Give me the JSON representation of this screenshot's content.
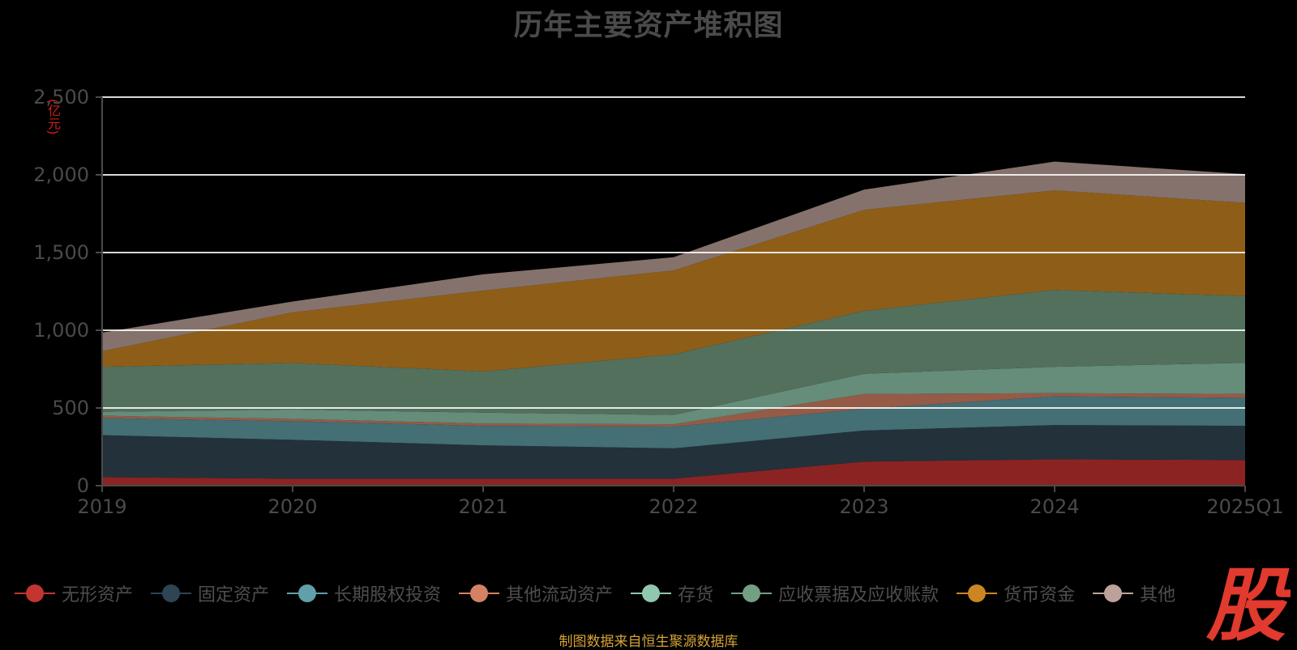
{
  "chart_data": {
    "type": "area",
    "stacked": true,
    "title": "历年主要资产堆积图",
    "y_unit": "(亿元)",
    "categories": [
      "2019",
      "2020",
      "2021",
      "2022",
      "2023",
      "2024",
      "2025Q1"
    ],
    "ylim": [
      0,
      2500
    ],
    "yticks": [
      0,
      500,
      1000,
      1500,
      2000,
      2500
    ],
    "ytick_labels": [
      "0",
      "500",
      "1,000",
      "1,500",
      "2,000",
      "2,500"
    ],
    "grid": true,
    "legend_position": "bottom",
    "series": [
      {
        "name": "无形资产",
        "color": "#c23531",
        "fill": "#8b2323",
        "values": [
          55,
          45,
          45,
          45,
          155,
          170,
          165
        ]
      },
      {
        "name": "固定资产",
        "color": "#2f4554",
        "fill": "#23313a",
        "values": [
          270,
          250,
          215,
          195,
          200,
          220,
          220
        ]
      },
      {
        "name": "长期股权投资",
        "color": "#61a0a8",
        "fill": "#436f75",
        "values": [
          110,
          120,
          125,
          140,
          140,
          185,
          180
        ]
      },
      {
        "name": "其他流动资产",
        "color": "#d48265",
        "fill": "#955b47",
        "values": [
          15,
          15,
          15,
          15,
          95,
          20,
          25
        ]
      },
      {
        "name": "存货",
        "color": "#91c7ae",
        "fill": "#668c7a",
        "values": [
          25,
          60,
          70,
          60,
          130,
          170,
          200
        ]
      },
      {
        "name": "应收票据及应收账款",
        "color": "#749f83",
        "fill": "#52705c",
        "values": [
          290,
          300,
          265,
          390,
          405,
          495,
          430
        ]
      },
      {
        "name": "货币资金",
        "color": "#ca8622",
        "fill": "#8e5e18",
        "values": [
          100,
          325,
          520,
          540,
          650,
          640,
          600
        ]
      },
      {
        "name": "其他",
        "color": "#bda29a",
        "fill": "#85726c",
        "values": [
          120,
          70,
          105,
          85,
          130,
          185,
          185
        ]
      }
    ]
  },
  "legend": {
    "items": [
      {
        "label": "无形资产"
      },
      {
        "label": "固定资产"
      },
      {
        "label": "长期股权投资"
      },
      {
        "label": "其他流动资产"
      },
      {
        "label": "存货"
      },
      {
        "label": "应收票据及应收账款"
      },
      {
        "label": "货币资金"
      },
      {
        "label": "其他"
      }
    ]
  },
  "footer": {
    "text": "制图数据来自恒生聚源数据库"
  },
  "brand": {
    "text": "股",
    "color": "#e23a2e"
  },
  "colors": {
    "background": "#000000",
    "grid": "#ffffff",
    "axis_text": "#4a4a4a"
  }
}
